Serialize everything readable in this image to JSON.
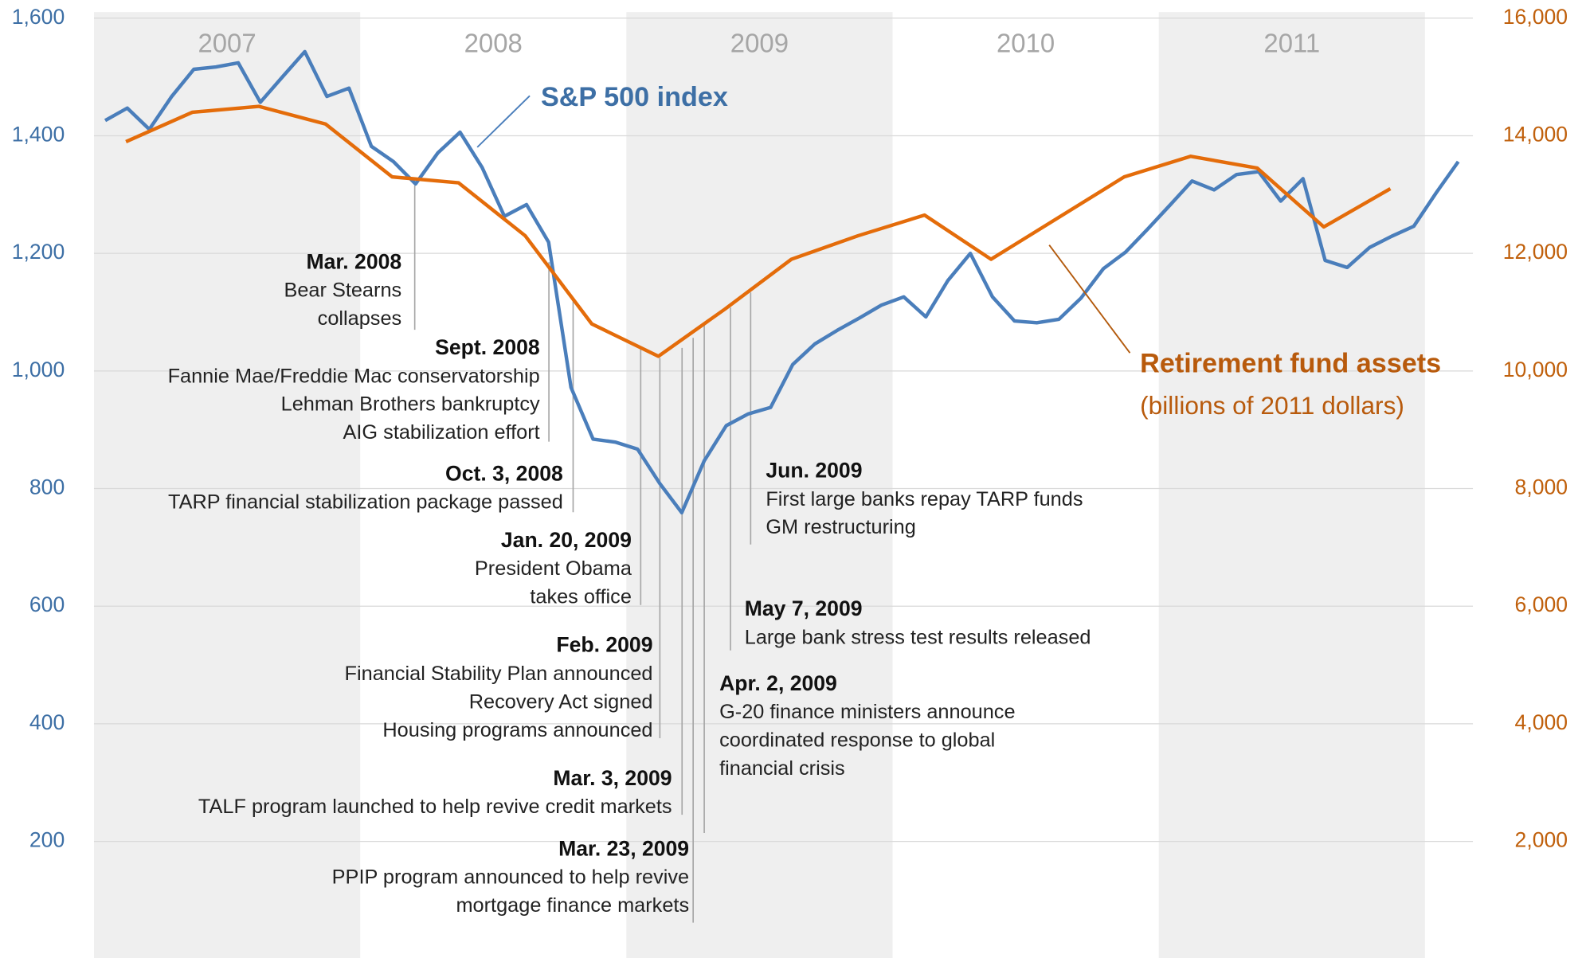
{
  "chart_data": {
    "type": "line",
    "xlim": [
      2007,
      2012.18
    ],
    "ylim": [
      0,
      1600
    ],
    "yticks": [
      200,
      400,
      600,
      800,
      {
        "value": 1000,
        "label": "1,000"
      },
      {
        "value": 1200,
        "label": "1,200"
      },
      {
        "value": 1400,
        "label": "1,400"
      },
      {
        "value": 1600,
        "label": "1,600"
      }
    ],
    "y2lim": [
      0,
      16000
    ],
    "y2ticks": [
      {
        "value": 2000,
        "label": "2,000"
      },
      {
        "value": 4000,
        "label": "4,000"
      },
      {
        "value": 6000,
        "label": "6,000"
      },
      {
        "value": 8000,
        "label": "8,000"
      },
      {
        "value": 10000,
        "label": "10,000"
      },
      {
        "value": 12000,
        "label": "12,000"
      },
      {
        "value": 14000,
        "label": "14,000"
      },
      {
        "value": 16000,
        "label": "16,000"
      }
    ],
    "grid": true,
    "bands": [
      {
        "label": "2007",
        "start": 2007,
        "end": 2008,
        "shaded": true
      },
      {
        "label": "2008",
        "start": 2008,
        "end": 2009,
        "shaded": false
      },
      {
        "label": "2009",
        "start": 2009,
        "end": 2010,
        "shaded": true
      },
      {
        "label": "2010",
        "start": 2010,
        "end": 2011,
        "shaded": false
      },
      {
        "label": "2011",
        "start": 2011,
        "end": 2012,
        "shaded": true
      }
    ],
    "series": [
      {
        "name": "S&P 500 index",
        "color": "#4a7ebb",
        "axis": "y",
        "x": [
          2007.042,
          2007.125,
          2007.208,
          2007.292,
          2007.375,
          2007.458,
          2007.542,
          2007.625,
          2007.708,
          2007.792,
          2007.875,
          2007.958,
          2008.042,
          2008.125,
          2008.208,
          2008.292,
          2008.375,
          2008.458,
          2008.542,
          2008.625,
          2008.708,
          2008.792,
          2008.875,
          2008.958,
          2009.042,
          2009.125,
          2009.208,
          2009.292,
          2009.375,
          2009.458,
          2009.542,
          2009.625,
          2009.708,
          2009.792,
          2009.875,
          2009.958,
          2010.042,
          2010.125,
          2010.208,
          2010.292,
          2010.375,
          2010.458,
          2010.542,
          2010.625,
          2010.708,
          2010.792,
          2010.875,
          2010.958,
          2011.042,
          2011.125,
          2011.208,
          2011.292,
          2011.375,
          2011.458,
          2011.542,
          2011.625,
          2011.708,
          2011.792,
          2011.875,
          2011.958,
          2012.042,
          2012.125
        ],
        "values": [
          1426,
          1447,
          1411,
          1467,
          1513,
          1517,
          1524,
          1457,
          1500,
          1543,
          1467,
          1481,
          1382,
          1356,
          1318,
          1371,
          1406,
          1346,
          1263,
          1283,
          1219,
          972,
          884,
          879,
          867,
          809,
          759,
          847,
          907,
          927,
          938,
          1011,
          1046,
          1069,
          1090,
          1112,
          1126,
          1092,
          1154,
          1200,
          1126,
          1085,
          1082,
          1088,
          1124,
          1174,
          1202,
          1241,
          1282,
          1323,
          1308,
          1334,
          1339,
          1289,
          1327,
          1188,
          1176,
          1210,
          1229,
          1246,
          1303,
          1356
        ]
      },
      {
        "name": "Retirement fund assets",
        "subtitle": "(billions of 2011 dollars)",
        "color": "#e46c0a",
        "axis": "y2",
        "x": [
          2007.12,
          2007.37,
          2007.62,
          2007.87,
          2008.12,
          2008.37,
          2008.62,
          2008.87,
          2009.12,
          2009.37,
          2009.62,
          2009.87,
          2010.12,
          2010.37,
          2010.62,
          2010.87,
          2011.12,
          2011.37,
          2011.62,
          2011.87
        ],
        "values": [
          13900,
          14400,
          14500,
          14200,
          13300,
          13200,
          12300,
          10800,
          10250,
          11050,
          11900,
          12300,
          12650,
          11900,
          12600,
          13300,
          13650,
          13450,
          12450,
          13100
        ]
      }
    ],
    "annotations": [
      {
        "date": "Mar. 2008",
        "lines": [
          "Bear Stearns",
          "collapses"
        ]
      },
      {
        "date": "Sept. 2008",
        "lines": [
          "Fannie Mae/Freddie Mac conservatorship",
          "Lehman Brothers bankruptcy",
          "AIG stabilization effort"
        ]
      },
      {
        "date": "Oct. 3, 2008",
        "lines": [
          "TARP financial stabilization package passed"
        ]
      },
      {
        "date": "Jan. 20, 2009",
        "lines": [
          "President Obama",
          "takes office"
        ]
      },
      {
        "date": "Feb. 2009",
        "lines": [
          "Financial Stability Plan announced",
          "Recovery Act signed",
          "Housing programs announced"
        ]
      },
      {
        "date": "Mar. 3, 2009",
        "lines": [
          "TALF program launched to help revive credit markets"
        ]
      },
      {
        "date": "Mar. 23, 2009",
        "lines": [
          "PPIP program announced to help revive",
          "mortgage finance markets"
        ]
      },
      {
        "date": "Apr. 2, 2009",
        "lines": [
          "G-20 finance ministers announce",
          "coordinated response to global",
          "financial crisis"
        ]
      },
      {
        "date": "May 7, 2009",
        "lines": [
          "Large bank stress test results released"
        ]
      },
      {
        "date": "Jun. 2009",
        "lines": [
          "First large banks repay TARP funds",
          "GM restructuring"
        ]
      }
    ]
  }
}
